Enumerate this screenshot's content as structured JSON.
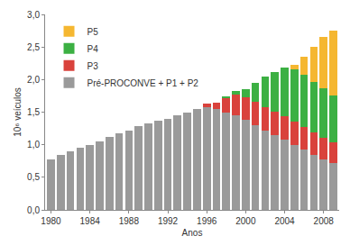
{
  "chart_data": {
    "type": "bar",
    "stacked": true,
    "x_label": "Anos",
    "y_label": "10⁶ veículos",
    "x": [
      1980,
      1981,
      1982,
      1983,
      1984,
      1985,
      1986,
      1987,
      1988,
      1989,
      1990,
      1991,
      1992,
      1993,
      1994,
      1995,
      1996,
      1997,
      1998,
      1999,
      2000,
      2001,
      2002,
      2003,
      2004,
      2005,
      2006,
      2007,
      2008,
      2009
    ],
    "series": [
      {
        "name": "Pré-PROCONVE + P1 + P2",
        "color": "#9a9a9a",
        "values": [
          0.78,
          0.85,
          0.9,
          0.95,
          1.0,
          1.05,
          1.12,
          1.18,
          1.22,
          1.28,
          1.33,
          1.37,
          1.4,
          1.45,
          1.5,
          1.55,
          1.58,
          1.55,
          1.5,
          1.45,
          1.38,
          1.3,
          1.22,
          1.15,
          1.08,
          1.0,
          0.92,
          0.85,
          0.78,
          0.72
        ]
      },
      {
        "name": "P3",
        "color": "#d9423c",
        "values": [
          0,
          0,
          0,
          0,
          0,
          0,
          0,
          0,
          0,
          0,
          0,
          0,
          0,
          0,
          0,
          0,
          0.05,
          0.1,
          0.22,
          0.32,
          0.35,
          0.36,
          0.36,
          0.36,
          0.36,
          0.36,
          0.35,
          0.34,
          0.33,
          0.32
        ]
      },
      {
        "name": "P4",
        "color": "#3cb043",
        "values": [
          0,
          0,
          0,
          0,
          0,
          0,
          0,
          0,
          0,
          0,
          0,
          0,
          0,
          0,
          0,
          0,
          0,
          0,
          0.02,
          0.05,
          0.12,
          0.29,
          0.47,
          0.61,
          0.74,
          0.8,
          0.8,
          0.78,
          0.75,
          0.72
        ]
      },
      {
        "name": "P5",
        "color": "#f5b731",
        "values": [
          0,
          0,
          0,
          0,
          0,
          0,
          0,
          0,
          0,
          0,
          0,
          0,
          0,
          0,
          0,
          0,
          0,
          0,
          0,
          0,
          0,
          0,
          0,
          0,
          0,
          0.06,
          0.28,
          0.53,
          0.79,
          0.99
        ]
      }
    ],
    "xlim": [
      1979.4,
      2009.6
    ],
    "xticks": [
      1980,
      1984,
      1988,
      1992,
      1996,
      2000,
      2004,
      2008
    ],
    "ylim": [
      0,
      3
    ],
    "yticks": [
      {
        "value": 0,
        "label": "0,0"
      },
      {
        "value": 0.5,
        "label": "0,5"
      },
      {
        "value": 1,
        "label": "1,0"
      },
      {
        "value": 1.5,
        "label": "1,5"
      },
      {
        "value": 2,
        "label": "2,0"
      },
      {
        "value": 2.5,
        "label": "2,5"
      },
      {
        "value": 3,
        "label": "3,0"
      }
    ],
    "grid": false,
    "legend": "top-left"
  }
}
